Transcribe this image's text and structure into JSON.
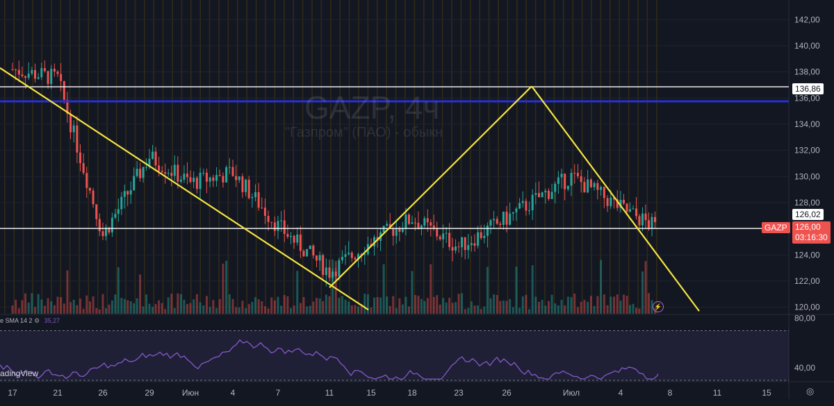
{
  "ticker": "GAZP, 4ч",
  "company": "\"Газпром\" (ПАО) - обыкн",
  "symbol_tag": "GAZP",
  "current_price": "126,00",
  "countdown": "03:16:30",
  "level_label_upper": "136,86",
  "level_label_lower": "126,02",
  "rsi_legend": {
    "label": "e SMA 14 2",
    "value": "35,27"
  },
  "brand": "adingView",
  "goto_icon": "◎",
  "alert_icon": "⚡",
  "colors": {
    "bull": "#26a69a",
    "bear": "#ef5350",
    "trendline": "#f5e642",
    "blue_level": "#2a2fd6",
    "rsi": "#7e57c2"
  },
  "chart_data": {
    "type": "candlestick",
    "ylim": [
      119.5,
      143.5
    ],
    "y_ticks": [
      "142,00",
      "140,00",
      "138,00",
      "136,00",
      "134,00",
      "132,00",
      "130,00",
      "128,00",
      "126,00",
      "124,00",
      "122,00",
      "120,00"
    ],
    "x_tick_labels": [
      "17",
      "21",
      "26",
      "29",
      "Июн",
      "4",
      "7",
      "11",
      "15",
      "18",
      "23",
      "26",
      "Июл",
      "4",
      "8",
      "11",
      "15"
    ],
    "horizontal_levels": [
      136.86,
      135.75,
      126.02
    ],
    "trendlines": [
      {
        "from": [
          "17",
          138.3
        ],
        "to": [
          "15",
          119.8
        ]
      },
      {
        "from": [
          "11",
          121.5
        ],
        "to": [
          "26",
          136.9
        ]
      },
      {
        "from": [
          "26",
          136.9
        ],
        "to": [
          "11",
          119.7
        ]
      }
    ],
    "close_path": [
      [
        "17",
        138.2
      ],
      [
        "21",
        137.5
      ],
      [
        "26",
        125.5
      ],
      [
        "29",
        131.5
      ],
      [
        "Июн",
        129.5
      ],
      [
        "4",
        130.3
      ],
      [
        "7",
        126.2
      ],
      [
        "11",
        122.7
      ],
      [
        "15",
        125.0
      ],
      [
        "18",
        126.8
      ],
      [
        "23",
        124.6
      ],
      [
        "26",
        126.8
      ],
      [
        "Июл",
        130.0
      ],
      [
        "4",
        127.6
      ],
      [
        "8",
        126.0
      ]
    ],
    "rsi": {
      "ylim": [
        30,
        82
      ],
      "ticks": [
        "80,00",
        "40,00"
      ],
      "last": 35.27
    }
  }
}
